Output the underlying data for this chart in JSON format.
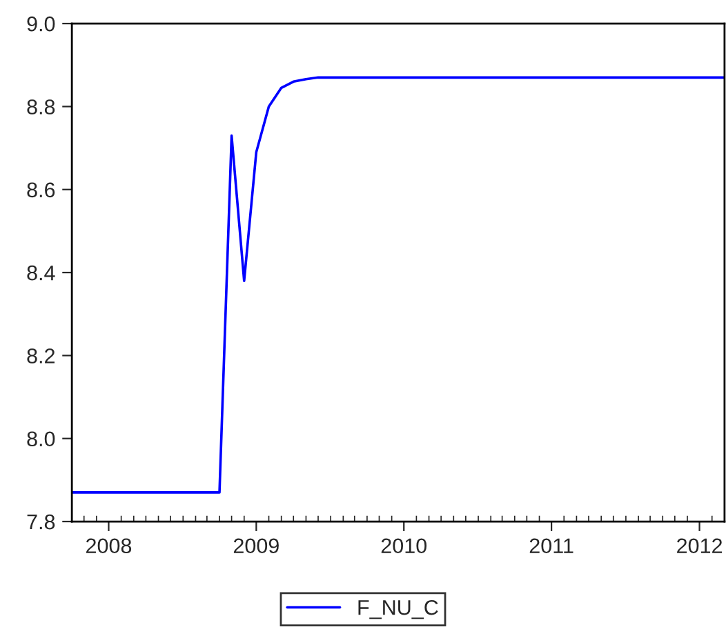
{
  "chart_data": {
    "type": "line",
    "x": [
      "2008-04",
      "2009-04",
      "2009-05",
      "2009-06",
      "2009-07",
      "2009-08",
      "2009-09",
      "2009-10",
      "2009-11",
      "2009-12",
      "2012-09"
    ],
    "series": [
      {
        "name": "F_NU_C",
        "color": "#0000ff",
        "values": [
          7.87,
          7.87,
          8.73,
          8.38,
          8.69,
          8.8,
          8.845,
          8.86,
          8.866,
          8.87,
          8.87
        ]
      }
    ],
    "xlim": [
      "2008-04",
      "2012-09"
    ],
    "xticks": [
      {
        "value": "2008-07",
        "label": "2008"
      },
      {
        "value": "2009-07",
        "label": "2009"
      },
      {
        "value": "2010-07",
        "label": "2010"
      },
      {
        "value": "2011-07",
        "label": "2011"
      },
      {
        "value": "2012-07",
        "label": "2012"
      }
    ],
    "ylim": [
      7.8,
      9.0
    ],
    "yticks": [
      {
        "value": 7.8,
        "label": "7.8"
      },
      {
        "value": 8.0,
        "label": "8.0"
      },
      {
        "value": 8.2,
        "label": "8.2"
      },
      {
        "value": 8.4,
        "label": "8.4"
      },
      {
        "value": 8.6,
        "label": "8.6"
      },
      {
        "value": 8.8,
        "label": "8.8"
      },
      {
        "value": 9.0,
        "label": "9.0"
      }
    ],
    "grid": false,
    "legend": "bottom",
    "marker": "none",
    "line_style": "solid"
  }
}
